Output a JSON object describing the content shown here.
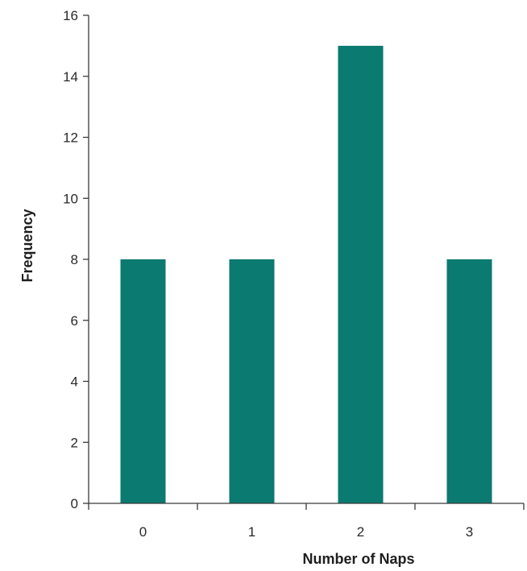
{
  "chart_data": {
    "type": "bar",
    "categories": [
      "0",
      "1",
      "2",
      "3"
    ],
    "values": [
      8,
      8,
      15,
      8
    ],
    "xlabel": "Number of Naps",
    "ylabel": "Frequency",
    "ylim": [
      0,
      16
    ],
    "yticks": [
      0,
      2,
      4,
      6,
      8,
      10,
      12,
      14,
      16
    ],
    "grid": false,
    "legend": "none",
    "bar_color": "#0b7a70",
    "axis_color": "#3a3a3a"
  }
}
